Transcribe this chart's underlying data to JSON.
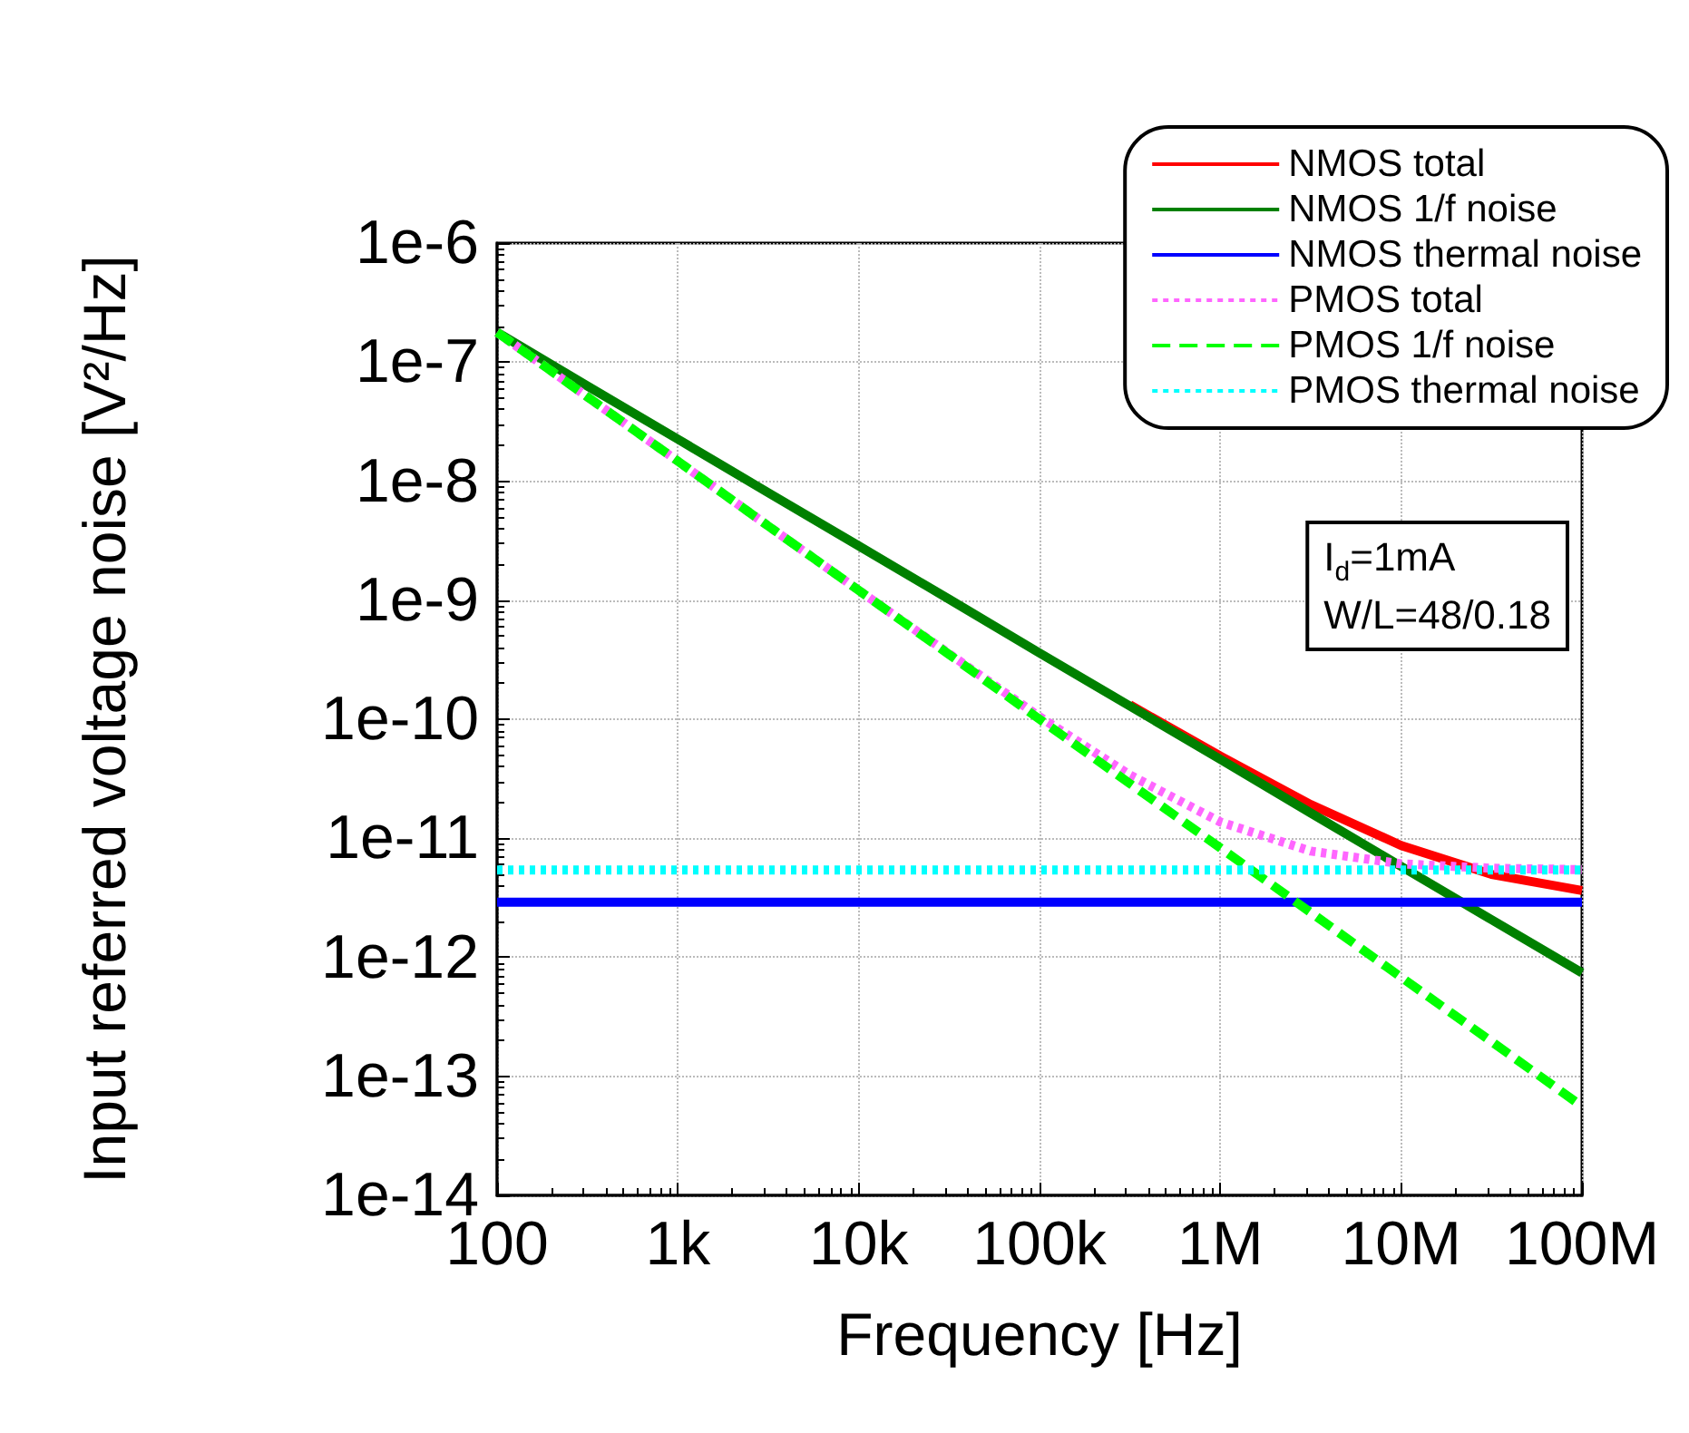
{
  "chart_data": {
    "type": "line",
    "xlabel": "Frequency [Hz]",
    "ylabel": "Input referred voltage noise [V²/Hz]",
    "log": "xy",
    "grid": true,
    "legend": "top right",
    "marker": "none",
    "x": [
      100,
      316,
      1000,
      3160,
      10000,
      31600,
      100000,
      316000,
      1000000,
      3160000,
      10000000,
      31600000,
      100000000
    ],
    "xlim": [
      100,
      100000000
    ],
    "xticks": [
      100,
      {
        "value": 1000,
        "label": "1k"
      },
      {
        "value": 10000,
        "label": "10k"
      },
      {
        "value": 100000,
        "label": "100k"
      },
      {
        "value": 1000000,
        "label": "1M"
      },
      {
        "value": 10000000,
        "label": "10M"
      },
      {
        "value": 100000000,
        "label": "100M"
      }
    ],
    "ylim": [
      1e-14,
      1e-06
    ],
    "yticks": [
      {
        "value": 1e-14,
        "label": "1e-14"
      },
      {
        "value": 1e-13,
        "label": "1e-13"
      },
      {
        "value": 1e-12,
        "label": "1e-12"
      },
      {
        "value": 1e-11,
        "label": "1e-11"
      },
      {
        "value": 1e-10,
        "label": "1e-10"
      },
      {
        "value": 1e-09,
        "label": "1e-9"
      },
      {
        "value": 1e-08,
        "label": "1e-8"
      },
      {
        "value": 1e-07,
        "label": "1e-7"
      },
      {
        "value": 1e-06,
        "label": "1e-6"
      }
    ],
    "series": [
      {
        "name": "NMOS total",
        "color": "#ff0000",
        "line_style": "solid",
        "values": [
          null,
          null,
          null,
          null,
          null,
          null,
          null,
          1.32e-10,
          4.9e-11,
          1.92e-11,
          8.7e-12,
          4.97e-12,
          3.64e-12
        ]
      },
      {
        "name": "NMOS 1/f noise",
        "color": "#008000",
        "line_style": "solid",
        "values": [
          1.78e-07,
          6.3e-08,
          2.25e-08,
          8e-09,
          2.86e-09,
          1.02e-09,
          3.6e-10,
          1.29e-10,
          4.6e-11,
          1.63e-11,
          5.8e-12,
          2.07e-12,
          7.4e-13
        ]
      },
      {
        "name": "NMOS thermal noise",
        "color": "#0000ff",
        "line_style": "solid",
        "values": [
          2.9e-12,
          2.9e-12,
          2.9e-12,
          2.9e-12,
          2.9e-12,
          2.9e-12,
          2.9e-12,
          2.9e-12,
          2.9e-12,
          2.9e-12,
          2.9e-12,
          2.9e-12,
          2.9e-12
        ]
      },
      {
        "name": "PMOS total",
        "color": "#ff66ff",
        "line_style": "dotted",
        "values": [
          1.78e-07,
          5.1e-08,
          1.47e-08,
          4.2e-09,
          1.21e-09,
          3.55e-10,
          1.05e-10,
          3.4e-11,
          1.37e-11,
          7.8e-12,
          6.1e-12,
          5.6e-12,
          5.45e-12
        ]
      },
      {
        "name": "PMOS 1/f noise",
        "color": "#00ff00",
        "line_style": "dashed",
        "values": [
          1.78e-07,
          5.1e-08,
          1.47e-08,
          4.2e-09,
          1.21e-09,
          3.5e-10,
          1e-10,
          2.88e-11,
          8.3e-12,
          2.38e-12,
          6.8e-13,
          1.96e-13,
          5.6e-14
        ]
      },
      {
        "name": "PMOS thermal noise",
        "color": "#00ffff",
        "line_style": "dotted",
        "values": [
          5.4e-12,
          5.4e-12,
          5.4e-12,
          5.4e-12,
          5.4e-12,
          5.4e-12,
          5.4e-12,
          5.4e-12,
          5.4e-12,
          5.4e-12,
          5.4e-12,
          5.4e-12,
          5.4e-12
        ]
      }
    ],
    "annotations": [
      "I$_{d}$=1mA",
      "W/L=48/0.18"
    ]
  }
}
